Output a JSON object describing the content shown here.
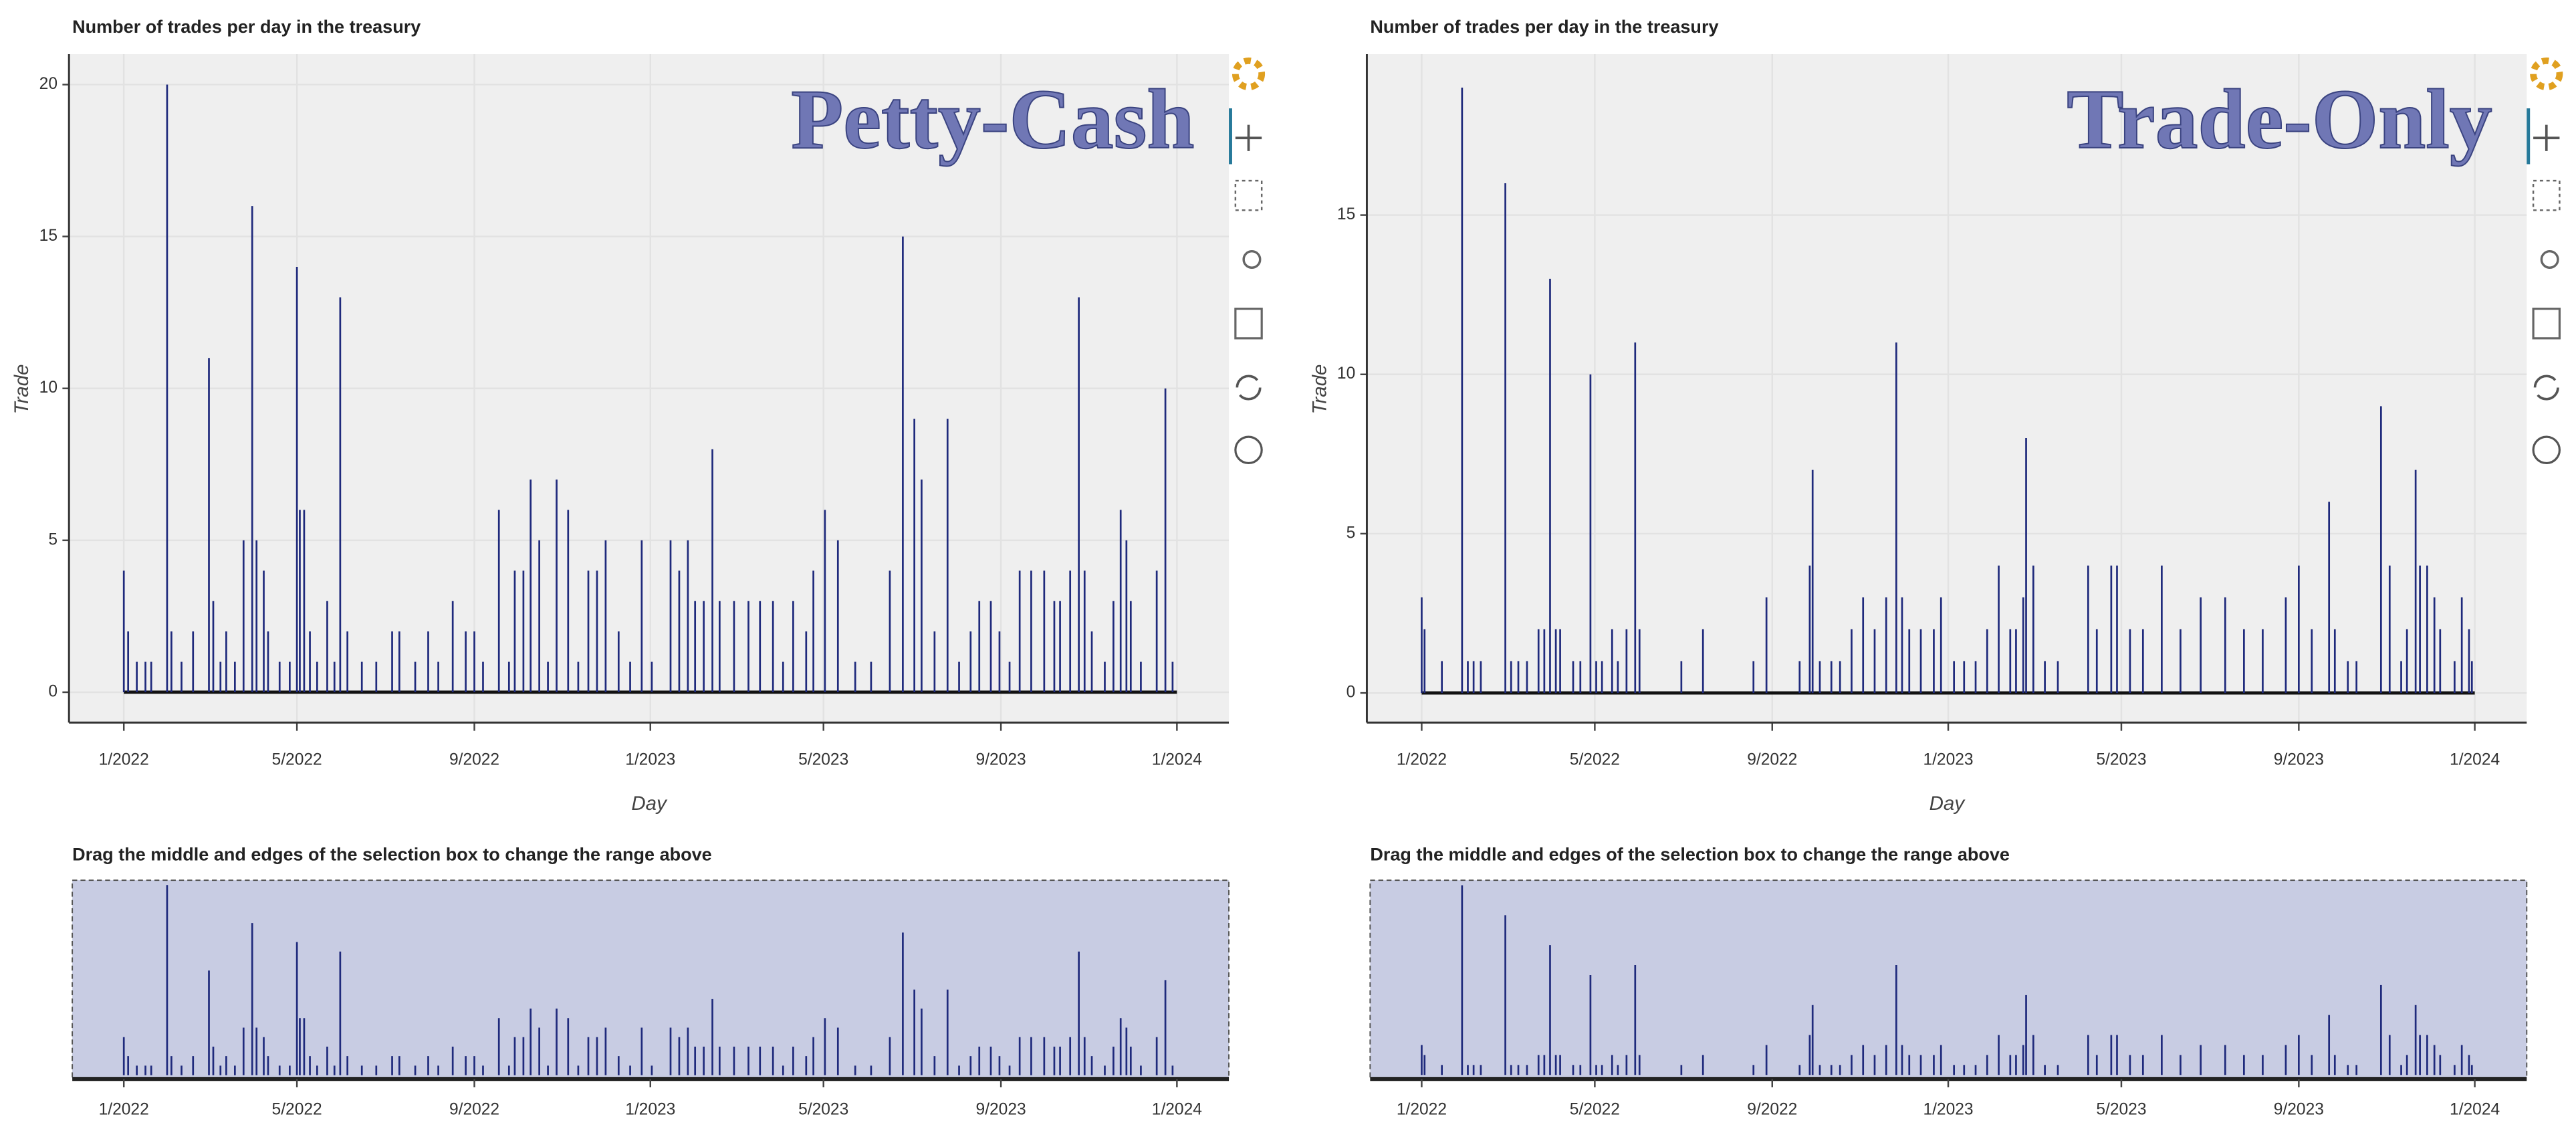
{
  "chart_data": [
    {
      "type": "bar",
      "title": "Number of trades per day in the treasury",
      "annotation": "Petty-Cash",
      "xlabel": "Day",
      "ylabel": "Trade",
      "range_title": "Drag the middle and edges of the selection box to change the range above",
      "color": "#1f2a7c",
      "grid": true,
      "xlim": [
        "2021-11-24",
        "2024-02-06"
      ],
      "ylim": [
        -1,
        21
      ],
      "range_ylim": [
        -0.4,
        20.5
      ],
      "xticks": [
        {
          "value": "2022-01-01",
          "label": "1/2022"
        },
        {
          "value": "2022-05-01",
          "label": "5/2022"
        },
        {
          "value": "2022-09-01",
          "label": "9/2022"
        },
        {
          "value": "2023-01-01",
          "label": "1/2023"
        },
        {
          "value": "2023-05-01",
          "label": "5/2023"
        },
        {
          "value": "2023-09-01",
          "label": "9/2023"
        },
        {
          "value": "2024-01-01",
          "label": "1/2024"
        }
      ],
      "yticks": [
        0,
        5,
        10,
        15,
        20
      ],
      "x": [
        "2022-01-01",
        "2022-01-04",
        "2022-01-10",
        "2022-01-16",
        "2022-01-20",
        "2022-01-31",
        "2022-02-03",
        "2022-02-10",
        "2022-02-18",
        "2022-03-01",
        "2022-03-04",
        "2022-03-09",
        "2022-03-13",
        "2022-03-19",
        "2022-03-25",
        "2022-03-31",
        "2022-04-03",
        "2022-04-08",
        "2022-04-11",
        "2022-04-19",
        "2022-04-26",
        "2022-05-01",
        "2022-05-03",
        "2022-05-06",
        "2022-05-10",
        "2022-05-15",
        "2022-05-22",
        "2022-05-27",
        "2022-05-31",
        "2022-06-05",
        "2022-06-15",
        "2022-06-25",
        "2022-07-06",
        "2022-07-11",
        "2022-07-22",
        "2022-07-31",
        "2022-08-07",
        "2022-08-17",
        "2022-08-26",
        "2022-09-01",
        "2022-09-07",
        "2022-09-18",
        "2022-09-25",
        "2022-09-29",
        "2022-10-05",
        "2022-10-10",
        "2022-10-16",
        "2022-10-22",
        "2022-10-28",
        "2022-11-05",
        "2022-11-12",
        "2022-11-19",
        "2022-11-25",
        "2022-12-01",
        "2022-12-10",
        "2022-12-18",
        "2022-12-26",
        "2023-01-02",
        "2023-01-15",
        "2023-01-21",
        "2023-01-27",
        "2023-02-01",
        "2023-02-07",
        "2023-02-13",
        "2023-02-18",
        "2023-02-28",
        "2023-03-10",
        "2023-03-18",
        "2023-03-27",
        "2023-04-03",
        "2023-04-10",
        "2023-04-19",
        "2023-04-24",
        "2023-05-02",
        "2023-05-11",
        "2023-05-23",
        "2023-06-03",
        "2023-06-16",
        "2023-06-25",
        "2023-07-03",
        "2023-07-08",
        "2023-07-17",
        "2023-07-26",
        "2023-08-03",
        "2023-08-11",
        "2023-08-17",
        "2023-08-25",
        "2023-08-31",
        "2023-09-07",
        "2023-09-14",
        "2023-09-22",
        "2023-10-01",
        "2023-10-08",
        "2023-10-12",
        "2023-10-19",
        "2023-10-25",
        "2023-10-29",
        "2023-11-03",
        "2023-11-12",
        "2023-11-18",
        "2023-11-23",
        "2023-11-27",
        "2023-11-30",
        "2023-12-07",
        "2023-12-18",
        "2023-12-24",
        "2023-12-29"
      ],
      "values": [
        4,
        2,
        1,
        1,
        1,
        20,
        2,
        1,
        2,
        11,
        3,
        1,
        2,
        1,
        5,
        16,
        5,
        4,
        2,
        1,
        1,
        14,
        6,
        6,
        2,
        1,
        3,
        1,
        13,
        2,
        1,
        1,
        2,
        2,
        1,
        2,
        1,
        3,
        2,
        2,
        1,
        6,
        1,
        4,
        4,
        7,
        5,
        1,
        7,
        6,
        1,
        4,
        4,
        5,
        2,
        1,
        5,
        1,
        5,
        4,
        5,
        3,
        3,
        8,
        3,
        3,
        3,
        3,
        3,
        1,
        3,
        2,
        4,
        6,
        5,
        1,
        1,
        4,
        15,
        9,
        7,
        2,
        9,
        1,
        2,
        3,
        3,
        2,
        1,
        4,
        4,
        4,
        3,
        3,
        4,
        13,
        4,
        2,
        1,
        3,
        6,
        5,
        3,
        1,
        4,
        10,
        1
      ]
    },
    {
      "type": "bar",
      "title": "Number of trades per day in the treasury",
      "annotation": "Trade-Only",
      "xlabel": "Day",
      "ylabel": "Trade",
      "range_title": "Drag the middle and edges of the selection box to change the range above",
      "color": "#1f2a7c",
      "grid": true,
      "xlim": [
        "2021-11-24",
        "2024-02-06"
      ],
      "ylim": [
        -0.93,
        20.05
      ],
      "range_ylim": [
        -0.4,
        19.5
      ],
      "xticks": [
        {
          "value": "2022-01-01",
          "label": "1/2022"
        },
        {
          "value": "2022-05-01",
          "label": "5/2022"
        },
        {
          "value": "2022-09-01",
          "label": "9/2022"
        },
        {
          "value": "2023-01-01",
          "label": "1/2023"
        },
        {
          "value": "2023-05-01",
          "label": "5/2023"
        },
        {
          "value": "2023-09-01",
          "label": "9/2023"
        },
        {
          "value": "2024-01-01",
          "label": "1/2024"
        }
      ],
      "yticks": [
        0,
        5,
        10,
        15
      ],
      "x": [
        "2022-01-01",
        "2022-01-03",
        "2022-01-15",
        "2022-01-29",
        "2022-02-02",
        "2022-02-06",
        "2022-02-11",
        "2022-02-28",
        "2022-03-04",
        "2022-03-09",
        "2022-03-15",
        "2022-03-23",
        "2022-03-27",
        "2022-03-31",
        "2022-04-04",
        "2022-04-07",
        "2022-04-16",
        "2022-04-21",
        "2022-04-28",
        "2022-05-02",
        "2022-05-06",
        "2022-05-13",
        "2022-05-17",
        "2022-05-23",
        "2022-05-29",
        "2022-06-01",
        "2022-06-30",
        "2022-07-15",
        "2022-08-19",
        "2022-08-28",
        "2022-09-20",
        "2022-09-27",
        "2022-09-29",
        "2022-10-04",
        "2022-10-12",
        "2022-10-18",
        "2022-10-26",
        "2022-11-03",
        "2022-11-11",
        "2022-11-19",
        "2022-11-26",
        "2022-11-30",
        "2022-12-05",
        "2022-12-13",
        "2022-12-22",
        "2022-12-27",
        "2023-01-05",
        "2023-01-12",
        "2023-01-20",
        "2023-01-28",
        "2023-02-05",
        "2023-02-13",
        "2023-02-17",
        "2023-02-22",
        "2023-02-24",
        "2023-03-01",
        "2023-03-09",
        "2023-03-18",
        "2023-04-08",
        "2023-04-14",
        "2023-04-24",
        "2023-04-28",
        "2023-05-07",
        "2023-05-16",
        "2023-05-29",
        "2023-06-11",
        "2023-06-25",
        "2023-07-12",
        "2023-07-25",
        "2023-08-07",
        "2023-08-23",
        "2023-09-01",
        "2023-09-10",
        "2023-09-22",
        "2023-09-26",
        "2023-10-05",
        "2023-10-11",
        "2023-10-28",
        "2023-11-03",
        "2023-11-11",
        "2023-11-15",
        "2023-11-21",
        "2023-11-24",
        "2023-11-29",
        "2023-12-04",
        "2023-12-08",
        "2023-12-18",
        "2023-12-23",
        "2023-12-28",
        "2023-12-30"
      ],
      "values": [
        3,
        2,
        1,
        19,
        1,
        1,
        1,
        16,
        1,
        1,
        1,
        2,
        2,
        13,
        2,
        2,
        1,
        1,
        10,
        1,
        1,
        2,
        1,
        2,
        11,
        2,
        1,
        2,
        1,
        3,
        1,
        4,
        7,
        1,
        1,
        1,
        2,
        3,
        2,
        3,
        11,
        3,
        2,
        2,
        2,
        3,
        1,
        1,
        1,
        2,
        4,
        2,
        2,
        3,
        8,
        4,
        1,
        1,
        4,
        2,
        4,
        4,
        2,
        2,
        4,
        2,
        3,
        3,
        2,
        2,
        3,
        4,
        2,
        6,
        2,
        1,
        1,
        9,
        4,
        1,
        2,
        7,
        4,
        4,
        3,
        2,
        1,
        3,
        2,
        1
      ]
    }
  ]
}
